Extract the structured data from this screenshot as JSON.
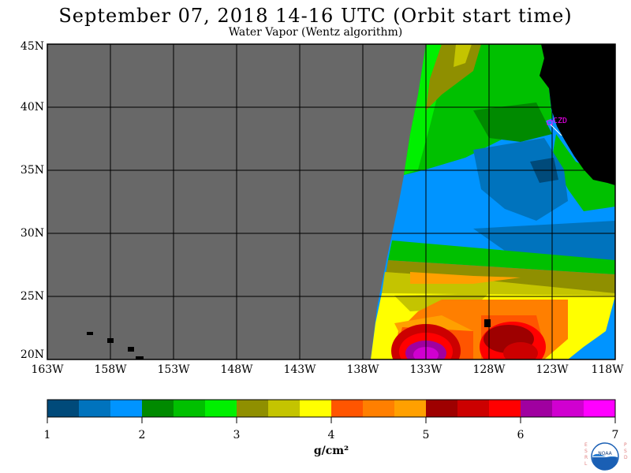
{
  "title": "September 07, 2018  14-16 UTC  (Orbit start time)",
  "subtitle": "Water Vapor (Wentz algorithm)",
  "map": {
    "lat_labels": [
      "45N",
      "40N",
      "35N",
      "30N",
      "25N",
      "20N"
    ],
    "lon_labels": [
      "163W",
      "158W",
      "153W",
      "148W",
      "143W",
      "138W",
      "133W",
      "128W",
      "123W",
      "118W"
    ],
    "station_label": "CZD",
    "no_data_color": "#686868",
    "land_color": "#000000",
    "station_color": "#ff00ff"
  },
  "colorbar": {
    "tick_labels": [
      "1",
      "2",
      "3",
      "4",
      "5",
      "6",
      "7"
    ],
    "units": "g/cm²",
    "colors": [
      "#004a7a",
      "#0073bd",
      "#0094ff",
      "#008a00",
      "#00c000",
      "#00f000",
      "#8f8f00",
      "#c4c400",
      "#ffff00",
      "#ff5500",
      "#ff7f00",
      "#ffa000",
      "#9e0000",
      "#cc0000",
      "#ff0000",
      "#a000a0",
      "#d000d0",
      "#ff00ff"
    ]
  },
  "logo": {
    "left_letters": "ESRL",
    "right_letters": "PSD",
    "center_text": "NOAA"
  }
}
